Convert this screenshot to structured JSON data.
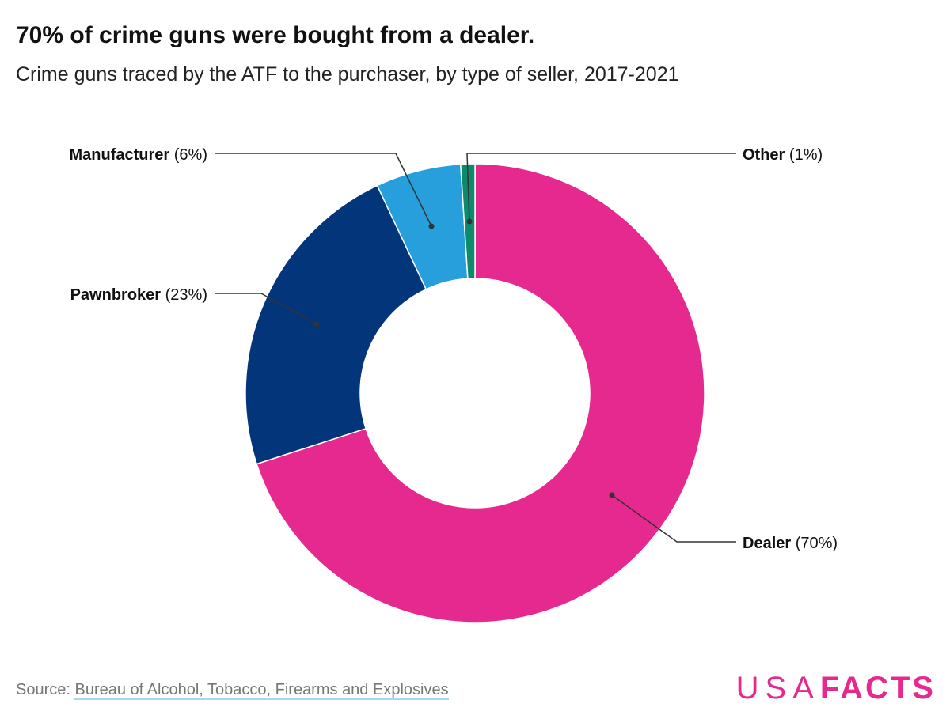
{
  "title": "70% of crime guns were bought from a dealer.",
  "subtitle": "Crime guns traced by the ATF to the purchaser, by type of seller, 2017-2021",
  "chart_data": {
    "type": "pie",
    "donut": true,
    "title": "70% of crime guns were bought from a dealer.",
    "subtitle": "Crime guns traced by the ATF to the purchaser, by type of seller, 2017-2021",
    "slices": [
      {
        "label": "Dealer",
        "value": 70,
        "display": "(70%)",
        "color": "#e6298e"
      },
      {
        "label": "Pawnbroker",
        "value": 23,
        "display": "(23%)",
        "color": "#03357a"
      },
      {
        "label": "Manufacturer",
        "value": 6,
        "display": "(6%)",
        "color": "#279fdd"
      },
      {
        "label": "Other",
        "value": 1,
        "display": "(1%)",
        "color": "#0c8a6b"
      }
    ]
  },
  "source": {
    "prefix": "Source: ",
    "link": "Bureau of Alcohol, Tobacco, Firearms and Explosives"
  },
  "logo": {
    "light": "USA",
    "bold": "FACTS",
    "color": "#e6298e"
  }
}
